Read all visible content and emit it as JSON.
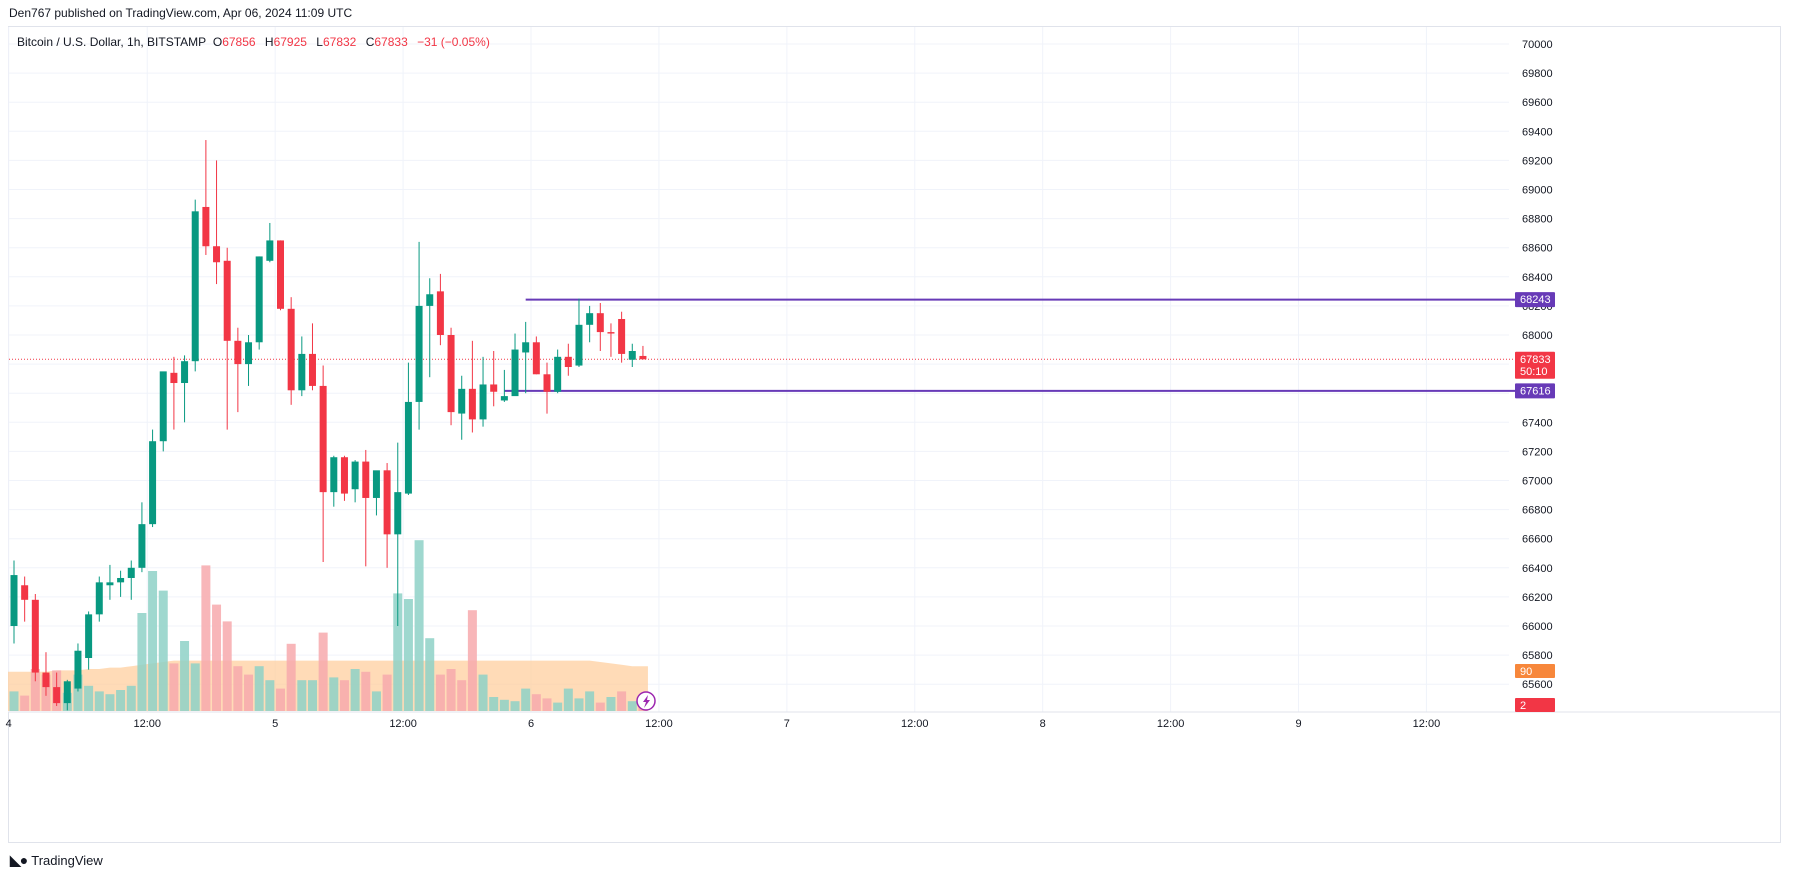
{
  "header": {
    "published": "Den767 published on TradingView.com, Apr 06, 2024 11:09 UTC"
  },
  "legend": {
    "symbol": "Bitcoin / U.S. Dollar, 1h, BITSTAMP",
    "o_label": "O",
    "o_value": "67856",
    "h_label": "H",
    "h_value": "67925",
    "l_label": "L",
    "l_value": "67832",
    "c_label": "C",
    "c_value": "67833",
    "change": "−31 (−0.05%)"
  },
  "footer": {
    "brand": "TradingView",
    "logo_icon": "tradingview-logo-icon"
  },
  "colors": {
    "up": "#089981",
    "down": "#f23645",
    "up_volume": "#8ed1c7",
    "down_volume": "#f7a9ad",
    "volume_ma": "#ffcc99",
    "level_line": "#673ab7",
    "last_price": "#f23645",
    "grid": "#f0f3fa"
  },
  "chart_data": {
    "type": "candlestick",
    "symbol": "BTCUSD",
    "interval": "1h",
    "exchange": "BITSTAMP",
    "y_axis": {
      "ticks": [
        "70000",
        "69800",
        "69600",
        "69400",
        "69200",
        "69000",
        "68800",
        "68600",
        "68400",
        "68200",
        "68000",
        "67800",
        "67600",
        "67400",
        "67200",
        "67000",
        "66800",
        "66600",
        "66400",
        "66200",
        "66000",
        "65800",
        "65600"
      ],
      "range": [
        65480,
        70080
      ]
    },
    "x_axis": {
      "ticks": [
        {
          "label": "4",
          "bar": -0.5
        },
        {
          "label": "12:00",
          "bar": 12.5
        },
        {
          "label": "5",
          "bar": 24.5
        },
        {
          "label": "12:00",
          "bar": 36.5
        },
        {
          "label": "6",
          "bar": 48.5
        },
        {
          "label": "12:00",
          "bar": 60.5
        },
        {
          "label": "7",
          "bar": 72.5
        },
        {
          "label": "12:00",
          "bar": 84.5
        },
        {
          "label": "8",
          "bar": 96.5
        },
        {
          "label": "12:00",
          "bar": 108.5
        },
        {
          "label": "9",
          "bar": 120.5
        },
        {
          "label": "12:00",
          "bar": 132.5
        }
      ]
    },
    "candles": [
      {
        "o": 66000,
        "h": 66450,
        "l": 65880,
        "c": 66350
      },
      {
        "o": 66280,
        "h": 66340,
        "l": 66030,
        "c": 66180
      },
      {
        "o": 66180,
        "h": 66220,
        "l": 65620,
        "c": 65680
      },
      {
        "o": 65680,
        "h": 65820,
        "l": 65520,
        "c": 65580
      },
      {
        "o": 65580,
        "h": 65680,
        "l": 65450,
        "c": 65470
      },
      {
        "o": 65470,
        "h": 65630,
        "l": 65420,
        "c": 65620
      },
      {
        "o": 65570,
        "h": 65880,
        "l": 65550,
        "c": 65830
      },
      {
        "o": 65780,
        "h": 66100,
        "l": 65700,
        "c": 66080
      },
      {
        "o": 66080,
        "h": 66340,
        "l": 66030,
        "c": 66300
      },
      {
        "o": 66280,
        "h": 66420,
        "l": 66180,
        "c": 66300
      },
      {
        "o": 66300,
        "h": 66380,
        "l": 66200,
        "c": 66330
      },
      {
        "o": 66330,
        "h": 66450,
        "l": 66180,
        "c": 66400
      },
      {
        "o": 66400,
        "h": 66850,
        "l": 66370,
        "c": 66700
      },
      {
        "o": 66700,
        "h": 67350,
        "l": 66680,
        "c": 67270
      },
      {
        "o": 67270,
        "h": 67740,
        "l": 67200,
        "c": 67750
      },
      {
        "o": 67740,
        "h": 67850,
        "l": 67350,
        "c": 67670
      },
      {
        "o": 67670,
        "h": 67860,
        "l": 67400,
        "c": 67820
      },
      {
        "o": 67820,
        "h": 68930,
        "l": 67750,
        "c": 68850
      },
      {
        "o": 68880,
        "h": 69340,
        "l": 68550,
        "c": 68610
      },
      {
        "o": 68610,
        "h": 69200,
        "l": 68350,
        "c": 68500
      },
      {
        "o": 68510,
        "h": 68600,
        "l": 67350,
        "c": 67960
      },
      {
        "o": 67960,
        "h": 68050,
        "l": 67470,
        "c": 67800
      },
      {
        "o": 67800,
        "h": 68000,
        "l": 67650,
        "c": 67950
      },
      {
        "o": 67950,
        "h": 68540,
        "l": 67900,
        "c": 68540
      },
      {
        "o": 68510,
        "h": 68770,
        "l": 68500,
        "c": 68650
      },
      {
        "o": 68650,
        "h": 68650,
        "l": 68170,
        "c": 68180
      },
      {
        "o": 68180,
        "h": 68260,
        "l": 67520,
        "c": 67620
      },
      {
        "o": 67620,
        "h": 67990,
        "l": 67580,
        "c": 67870
      },
      {
        "o": 67870,
        "h": 68080,
        "l": 67620,
        "c": 67650
      },
      {
        "o": 67650,
        "h": 67790,
        "l": 66440,
        "c": 66920
      },
      {
        "o": 66920,
        "h": 67170,
        "l": 66820,
        "c": 67160
      },
      {
        "o": 67160,
        "h": 67170,
        "l": 66860,
        "c": 66910
      },
      {
        "o": 66940,
        "h": 67140,
        "l": 66850,
        "c": 67130
      },
      {
        "o": 67130,
        "h": 67210,
        "l": 66410,
        "c": 66880
      },
      {
        "o": 66880,
        "h": 67050,
        "l": 66760,
        "c": 67070
      },
      {
        "o": 67070,
        "h": 67120,
        "l": 66400,
        "c": 66630
      },
      {
        "o": 66630,
        "h": 67260,
        "l": 66000,
        "c": 66920
      },
      {
        "o": 66910,
        "h": 67810,
        "l": 66900,
        "c": 67540
      },
      {
        "o": 67540,
        "h": 68640,
        "l": 67350,
        "c": 68200
      },
      {
        "o": 68200,
        "h": 68390,
        "l": 67710,
        "c": 68280
      },
      {
        "o": 68300,
        "h": 68420,
        "l": 67930,
        "c": 68000
      },
      {
        "o": 68000,
        "h": 68050,
        "l": 67380,
        "c": 67470
      },
      {
        "o": 67460,
        "h": 67720,
        "l": 67280,
        "c": 67630
      },
      {
        "o": 67630,
        "h": 67960,
        "l": 67330,
        "c": 67420
      },
      {
        "o": 67420,
        "h": 67850,
        "l": 67370,
        "c": 67660
      },
      {
        "o": 67660,
        "h": 67890,
        "l": 67510,
        "c": 67610
      },
      {
        "o": 67550,
        "h": 67760,
        "l": 67540,
        "c": 67580
      },
      {
        "o": 67580,
        "h": 68010,
        "l": 67600,
        "c": 67900
      },
      {
        "o": 67880,
        "h": 68090,
        "l": 67600,
        "c": 67950
      },
      {
        "o": 67950,
        "h": 67990,
        "l": 67730,
        "c": 67730
      },
      {
        "o": 67730,
        "h": 67810,
        "l": 67460,
        "c": 67610
      },
      {
        "o": 67610,
        "h": 67900,
        "l": 67600,
        "c": 67850
      },
      {
        "o": 67850,
        "h": 67940,
        "l": 67720,
        "c": 67780
      },
      {
        "o": 67790,
        "h": 68250,
        "l": 67780,
        "c": 68070
      },
      {
        "o": 68070,
        "h": 68200,
        "l": 67950,
        "c": 68150
      },
      {
        "o": 68150,
        "h": 68220,
        "l": 67890,
        "c": 68020
      },
      {
        "o": 68020,
        "h": 68080,
        "l": 67850,
        "c": 68010
      },
      {
        "o": 68110,
        "h": 68160,
        "l": 67810,
        "c": 67870
      },
      {
        "o": 67830,
        "h": 67940,
        "l": 67780,
        "c": 67890
      },
      {
        "o": 67856,
        "h": 67925,
        "l": 67832,
        "c": 67833
      }
    ],
    "volume": [
      {
        "v": 0.7,
        "up": true
      },
      {
        "v": 0.55,
        "up": false
      },
      {
        "v": 1.5,
        "up": false
      },
      {
        "v": 1.3,
        "up": false
      },
      {
        "v": 1.45,
        "up": false
      },
      {
        "v": 0.65,
        "up": true
      },
      {
        "v": 1.3,
        "up": true
      },
      {
        "v": 0.9,
        "up": true
      },
      {
        "v": 0.7,
        "up": true
      },
      {
        "v": 0.6,
        "up": true
      },
      {
        "v": 0.75,
        "up": true
      },
      {
        "v": 0.9,
        "up": true
      },
      {
        "v": 3.5,
        "up": true
      },
      {
        "v": 5.0,
        "up": true
      },
      {
        "v": 4.3,
        "up": true
      },
      {
        "v": 1.7,
        "up": false
      },
      {
        "v": 2.5,
        "up": true
      },
      {
        "v": 1.7,
        "up": true
      },
      {
        "v": 5.2,
        "up": false
      },
      {
        "v": 3.8,
        "up": false
      },
      {
        "v": 3.2,
        "up": false
      },
      {
        "v": 1.6,
        "up": false
      },
      {
        "v": 1.3,
        "up": false
      },
      {
        "v": 1.6,
        "up": true
      },
      {
        "v": 1.1,
        "up": true
      },
      {
        "v": 0.8,
        "up": false
      },
      {
        "v": 2.4,
        "up": false
      },
      {
        "v": 1.1,
        "up": true
      },
      {
        "v": 1.1,
        "up": true
      },
      {
        "v": 2.8,
        "up": false
      },
      {
        "v": 1.2,
        "up": true
      },
      {
        "v": 1.1,
        "up": false
      },
      {
        "v": 1.5,
        "up": true
      },
      {
        "v": 1.4,
        "up": false
      },
      {
        "v": 0.7,
        "up": true
      },
      {
        "v": 1.3,
        "up": false
      },
      {
        "v": 4.2,
        "up": true
      },
      {
        "v": 4.0,
        "up": true
      },
      {
        "v": 6.1,
        "up": true
      },
      {
        "v": 2.6,
        "up": true
      },
      {
        "v": 1.3,
        "up": false
      },
      {
        "v": 1.5,
        "up": false
      },
      {
        "v": 1.1,
        "up": false
      },
      {
        "v": 3.6,
        "up": false
      },
      {
        "v": 1.3,
        "up": true
      },
      {
        "v": 0.5,
        "up": true
      },
      {
        "v": 0.4,
        "up": true
      },
      {
        "v": 0.35,
        "up": true
      },
      {
        "v": 0.8,
        "up": true
      },
      {
        "v": 0.6,
        "up": false
      },
      {
        "v": 0.45,
        "up": false
      },
      {
        "v": 0.3,
        "up": true
      },
      {
        "v": 0.8,
        "up": true
      },
      {
        "v": 0.45,
        "up": true
      },
      {
        "v": 0.7,
        "up": true
      },
      {
        "v": 0.3,
        "up": false
      },
      {
        "v": 0.5,
        "up": true
      },
      {
        "v": 0.7,
        "up": false
      },
      {
        "v": 0.35,
        "up": true
      },
      {
        "v": 0.4,
        "up": false
      }
    ],
    "volume_ma": [
      1.4,
      1.4,
      1.4,
      1.4,
      1.45,
      1.45,
      1.45,
      1.5,
      1.5,
      1.55,
      1.55,
      1.6,
      1.65,
      1.7,
      1.75,
      1.8,
      1.8,
      1.8,
      1.8,
      1.8,
      1.8,
      1.8,
      1.8,
      1.8,
      1.8,
      1.8,
      1.8,
      1.8,
      1.8,
      1.8,
      1.8,
      1.8,
      1.8,
      1.8,
      1.8,
      1.8,
      1.8,
      1.8,
      1.8,
      1.8,
      1.8,
      1.8,
      1.8,
      1.8,
      1.8,
      1.8,
      1.8,
      1.8,
      1.8,
      1.8,
      1.8,
      1.8,
      1.8,
      1.8,
      1.8,
      1.75,
      1.7,
      1.65,
      1.6,
      1.6
    ],
    "horizontal_levels": [
      {
        "price": 68243,
        "label": "68243",
        "from_bar": 48
      },
      {
        "price": 67616,
        "label": "67616",
        "from_bar": 46
      }
    ],
    "last_price": {
      "price": 67833,
      "label": "67833",
      "countdown": "50:10"
    },
    "volume_labels": [
      {
        "label": "90",
        "color": "#f7873b",
        "value": 90
      },
      {
        "label": "2",
        "color": "#f23645",
        "value": 2
      }
    ],
    "grid": true
  }
}
